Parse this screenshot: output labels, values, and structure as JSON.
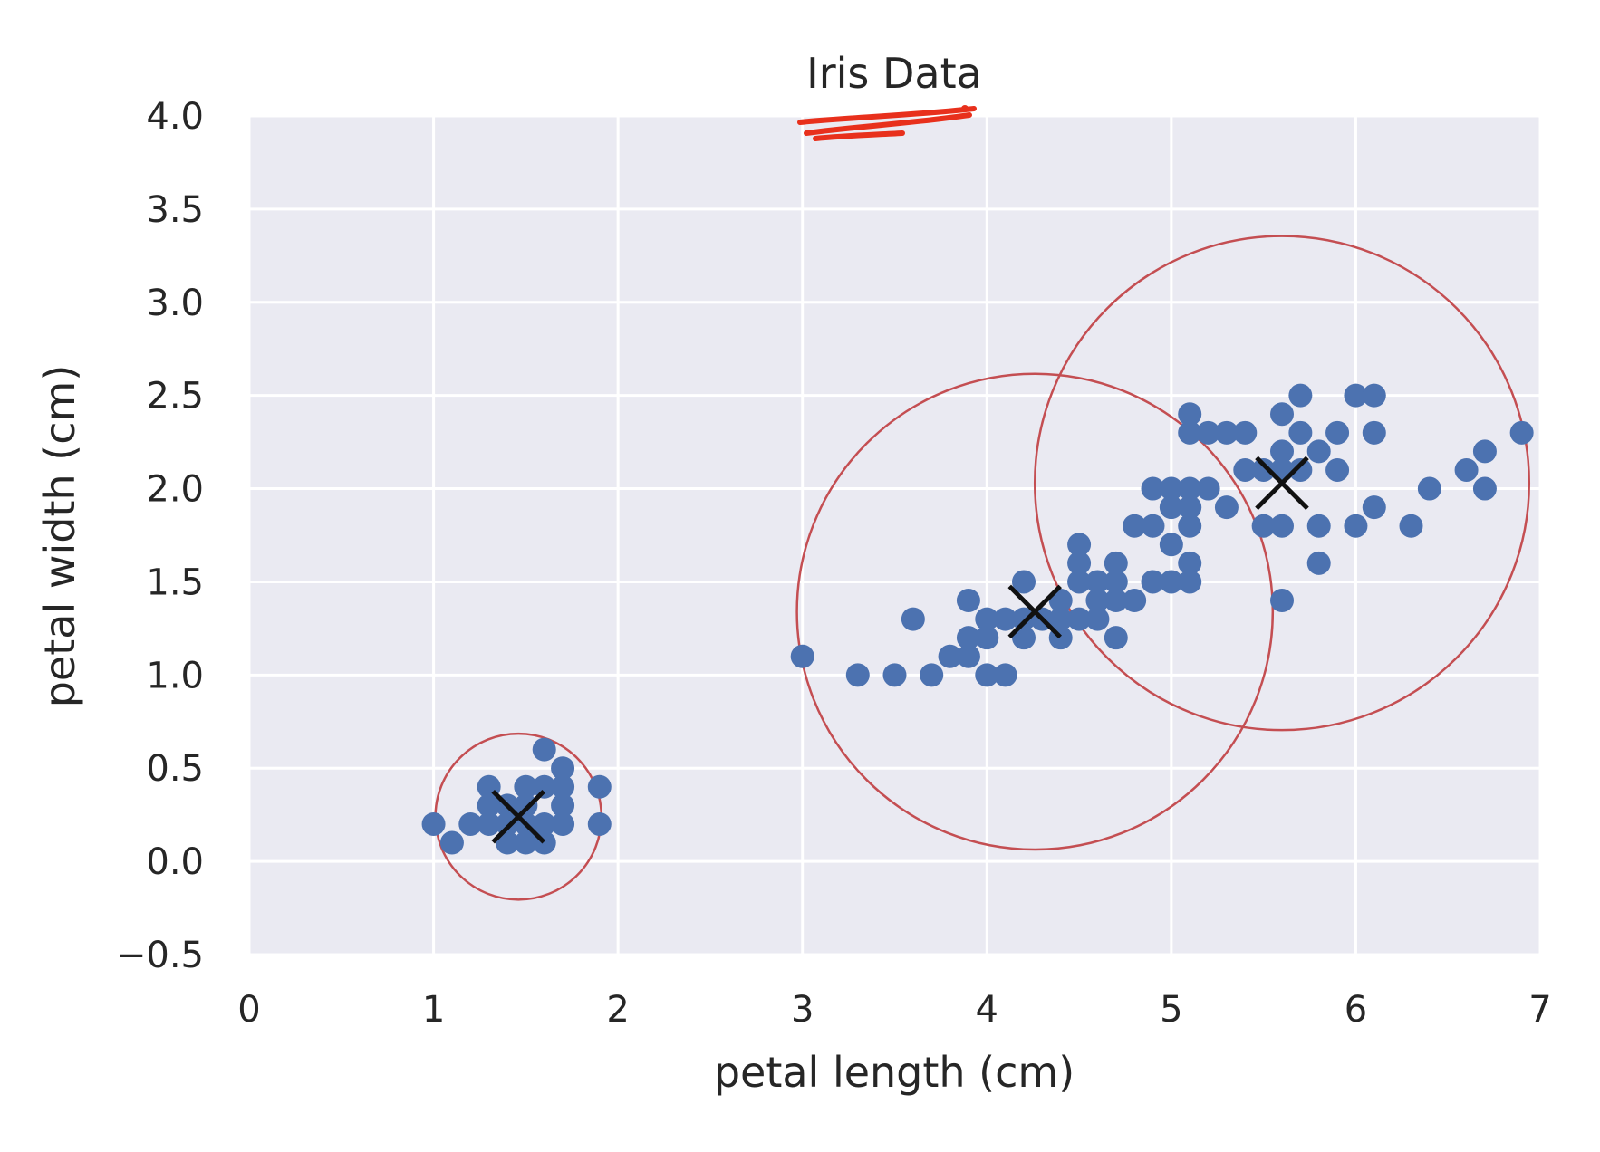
{
  "chart_data": {
    "type": "scatter",
    "title": "Iris Data",
    "xlabel": "petal length (cm)",
    "ylabel": "petal width (cm)",
    "xlim": [
      0,
      7
    ],
    "ylim": [
      -0.5,
      4.0
    ],
    "xticks": [
      "0",
      "1",
      "2",
      "3",
      "4",
      "5",
      "6",
      "7"
    ],
    "yticks": [
      "−0.5",
      "0.0",
      "0.5",
      "1.0",
      "1.5",
      "2.0",
      "2.5",
      "3.0",
      "3.5",
      "4.0"
    ],
    "grid": true,
    "background_color": "#eaeaf2",
    "point_color": "#4c72b0",
    "center_color": "#111111",
    "circle_color": "#c44e52",
    "annotation_color": "#e8301c",
    "points": [
      [
        1.0,
        0.2
      ],
      [
        1.1,
        0.1
      ],
      [
        1.2,
        0.2
      ],
      [
        1.3,
        0.2
      ],
      [
        1.3,
        0.3
      ],
      [
        1.3,
        0.4
      ],
      [
        1.4,
        0.2
      ],
      [
        1.4,
        0.1
      ],
      [
        1.4,
        0.3
      ],
      [
        1.5,
        0.2
      ],
      [
        1.5,
        0.1
      ],
      [
        1.5,
        0.4
      ],
      [
        1.5,
        0.3
      ],
      [
        1.6,
        0.2
      ],
      [
        1.6,
        0.4
      ],
      [
        1.6,
        0.6
      ],
      [
        1.6,
        0.1
      ],
      [
        1.7,
        0.2
      ],
      [
        1.7,
        0.3
      ],
      [
        1.7,
        0.4
      ],
      [
        1.7,
        0.5
      ],
      [
        1.9,
        0.2
      ],
      [
        1.9,
        0.4
      ],
      [
        3.0,
        1.1
      ],
      [
        3.3,
        1.0
      ],
      [
        3.5,
        1.0
      ],
      [
        3.6,
        1.3
      ],
      [
        3.7,
        1.0
      ],
      [
        3.8,
        1.1
      ],
      [
        3.9,
        1.1
      ],
      [
        3.9,
        1.2
      ],
      [
        3.9,
        1.4
      ],
      [
        4.0,
        1.0
      ],
      [
        4.0,
        1.3
      ],
      [
        4.0,
        1.2
      ],
      [
        4.1,
        1.0
      ],
      [
        4.1,
        1.3
      ],
      [
        4.2,
        1.3
      ],
      [
        4.2,
        1.5
      ],
      [
        4.2,
        1.2
      ],
      [
        4.3,
        1.3
      ],
      [
        4.4,
        1.4
      ],
      [
        4.4,
        1.2
      ],
      [
        4.4,
        1.3
      ],
      [
        4.5,
        1.5
      ],
      [
        4.5,
        1.3
      ],
      [
        4.5,
        1.6
      ],
      [
        4.5,
        1.7
      ],
      [
        4.6,
        1.4
      ],
      [
        4.6,
        1.5
      ],
      [
        4.6,
        1.3
      ],
      [
        4.7,
        1.4
      ],
      [
        4.7,
        1.5
      ],
      [
        4.7,
        1.2
      ],
      [
        4.7,
        1.6
      ],
      [
        4.8,
        1.8
      ],
      [
        4.8,
        1.4
      ],
      [
        4.9,
        1.5
      ],
      [
        4.9,
        1.8
      ],
      [
        4.9,
        2.0
      ],
      [
        5.0,
        1.5
      ],
      [
        5.0,
        1.7
      ],
      [
        5.0,
        2.0
      ],
      [
        5.0,
        1.9
      ],
      [
        5.1,
        1.6
      ],
      [
        5.1,
        1.5
      ],
      [
        5.1,
        1.8
      ],
      [
        5.1,
        1.9
      ],
      [
        5.1,
        2.0
      ],
      [
        5.1,
        2.3
      ],
      [
        5.1,
        2.4
      ],
      [
        5.2,
        2.0
      ],
      [
        5.2,
        2.3
      ],
      [
        5.3,
        1.9
      ],
      [
        5.3,
        2.3
      ],
      [
        5.4,
        2.1
      ],
      [
        5.4,
        2.3
      ],
      [
        5.5,
        1.8
      ],
      [
        5.5,
        2.1
      ],
      [
        5.6,
        1.4
      ],
      [
        5.6,
        1.8
      ],
      [
        5.6,
        2.1
      ],
      [
        5.6,
        2.2
      ],
      [
        5.6,
        2.4
      ],
      [
        5.7,
        2.1
      ],
      [
        5.7,
        2.3
      ],
      [
        5.7,
        2.5
      ],
      [
        5.8,
        1.6
      ],
      [
        5.8,
        1.8
      ],
      [
        5.8,
        2.2
      ],
      [
        5.9,
        2.1
      ],
      [
        5.9,
        2.3
      ],
      [
        6.0,
        1.8
      ],
      [
        6.0,
        2.5
      ],
      [
        6.1,
        1.9
      ],
      [
        6.1,
        2.3
      ],
      [
        6.1,
        2.5
      ],
      [
        6.3,
        1.8
      ],
      [
        6.4,
        2.0
      ],
      [
        6.6,
        2.1
      ],
      [
        6.7,
        2.0
      ],
      [
        6.7,
        2.2
      ],
      [
        6.9,
        2.3
      ]
    ],
    "centers": [
      {
        "x": 1.46,
        "y": 0.24,
        "radius_x": 0.45
      },
      {
        "x": 4.26,
        "y": 1.34,
        "radius_x": 1.29
      },
      {
        "x": 5.6,
        "y": 2.03,
        "radius_x": 1.34
      }
    ]
  }
}
